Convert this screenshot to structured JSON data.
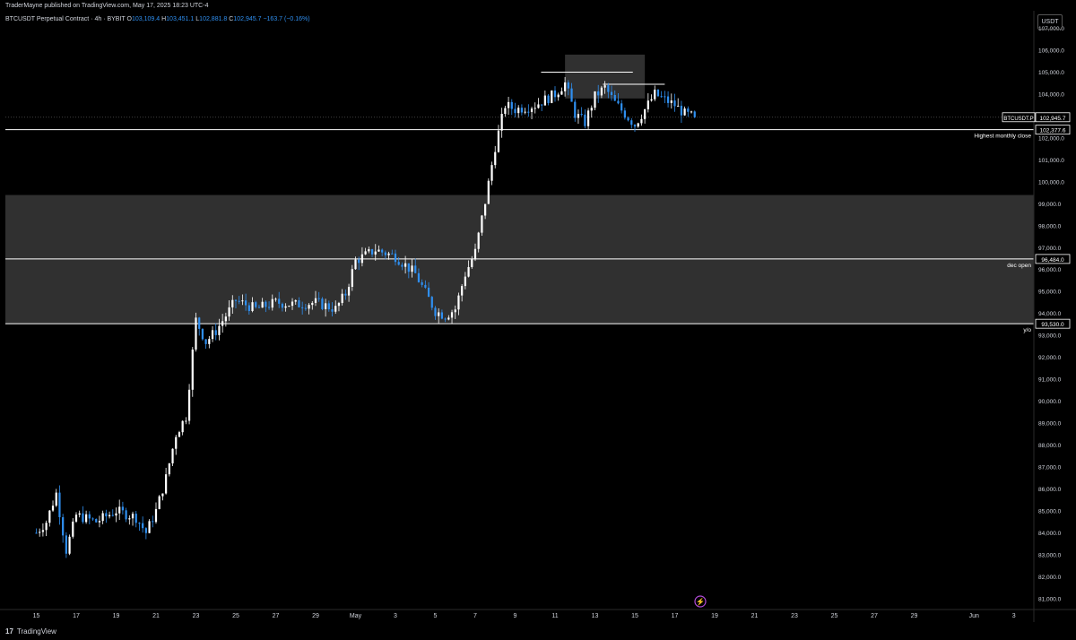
{
  "header": {
    "published": "TraderMayne published on TradingView.com, May 17, 2025 18:23 UTC-4"
  },
  "legend": {
    "symbol": "BTCUSDT Perpetual Contract · 4h · BYBIT",
    "o_label": "O",
    "o_value": "103,109.4",
    "h_label": "H",
    "h_value": "103,451.1",
    "l_label": "L",
    "l_value": "102,881.8",
    "c_label": "C",
    "c_value": "102,945.7",
    "change": "−163.7 (−0.16%)"
  },
  "currency": "USDT",
  "footer": {
    "logo_mark": "17",
    "logo_text": "TradingView"
  },
  "colors": {
    "up": "#ffffff",
    "down": "#2f8ff0",
    "zone": "#333333",
    "background": "#000000"
  },
  "chart_data": {
    "type": "candlestick",
    "interval": "4h",
    "ylim": [
      80500,
      107800
    ],
    "y_ticks": [
      {
        "value": 81000,
        "label": "81,000.0"
      },
      {
        "value": 82000,
        "label": "82,000.0"
      },
      {
        "value": 83000,
        "label": "83,000.0"
      },
      {
        "value": 84000,
        "label": "84,000.0"
      },
      {
        "value": 85000,
        "label": "85,000.0"
      },
      {
        "value": 86000,
        "label": "86,000.0"
      },
      {
        "value": 87000,
        "label": "87,000.0"
      },
      {
        "value": 88000,
        "label": "88,000.0"
      },
      {
        "value": 89000,
        "label": "89,000.0"
      },
      {
        "value": 90000,
        "label": "90,000.0"
      },
      {
        "value": 91000,
        "label": "91,000.0"
      },
      {
        "value": 92000,
        "label": "92,000.0"
      },
      {
        "value": 93000,
        "label": "93,000.0"
      },
      {
        "value": 94000,
        "label": "94,000.0"
      },
      {
        "value": 95000,
        "label": "95,000.0"
      },
      {
        "value": 96000,
        "label": "96,000.0"
      },
      {
        "value": 97000,
        "label": "97,000.0"
      },
      {
        "value": 98000,
        "label": "98,000.0"
      },
      {
        "value": 99000,
        "label": "99,000.0"
      },
      {
        "value": 100000,
        "label": "100,000.0"
      },
      {
        "value": 101000,
        "label": "101,000.0"
      },
      {
        "value": 102000,
        "label": "102,000.0"
      },
      {
        "value": 104000,
        "label": "104,000.0"
      },
      {
        "value": 105000,
        "label": "105,000.0"
      },
      {
        "value": 106000,
        "label": "106,000.0"
      },
      {
        "value": 107000,
        "label": "107,000.0"
      }
    ],
    "x_ticks": [
      {
        "day": 0,
        "label": "15"
      },
      {
        "day": 2,
        "label": "17"
      },
      {
        "day": 4,
        "label": "19"
      },
      {
        "day": 6,
        "label": "21"
      },
      {
        "day": 8,
        "label": "23"
      },
      {
        "day": 10,
        "label": "25"
      },
      {
        "day": 12,
        "label": "27"
      },
      {
        "day": 14,
        "label": "29"
      },
      {
        "day": 16,
        "label": "May"
      },
      {
        "day": 18,
        "label": "3"
      },
      {
        "day": 20,
        "label": "5"
      },
      {
        "day": 22,
        "label": "7"
      },
      {
        "day": 24,
        "label": "9"
      },
      {
        "day": 26,
        "label": "11"
      },
      {
        "day": 28,
        "label": "13"
      },
      {
        "day": 30,
        "label": "15"
      },
      {
        "day": 32,
        "label": "17"
      },
      {
        "day": 34,
        "label": "19"
      },
      {
        "day": 36,
        "label": "21"
      },
      {
        "day": 38,
        "label": "23"
      },
      {
        "day": 40,
        "label": "25"
      },
      {
        "day": 42,
        "label": "27"
      },
      {
        "day": 44,
        "label": "29"
      },
      {
        "day": 47,
        "label": "Jun"
      },
      {
        "day": 49,
        "label": "3"
      }
    ],
    "x_range_days": [
      -1.55,
      50
    ],
    "zones": [
      {
        "from": 93530,
        "to": 99400
      },
      {
        "day_from": 26.5,
        "day_to": 30.5,
        "from": 103800,
        "to": 105800
      }
    ],
    "levels": [
      {
        "value": 102377.6,
        "label": "102,377.6",
        "note": "Highest monthly close"
      },
      {
        "value": 96484.0,
        "label": "96,484.0",
        "note": "dec open"
      },
      {
        "value": 93530.0,
        "label": "93,530.0",
        "note": "y/o"
      }
    ],
    "short_lines": [
      {
        "value": 105000,
        "day_from": 25.3,
        "day_to": 29.9
      },
      {
        "value": 104450,
        "day_from": 28.4,
        "day_to": 31.5
      }
    ],
    "last_price": {
      "value": 102945.7,
      "symbol": "BTCUSDT.P",
      "label": "102,945.7"
    },
    "candles": []
  }
}
